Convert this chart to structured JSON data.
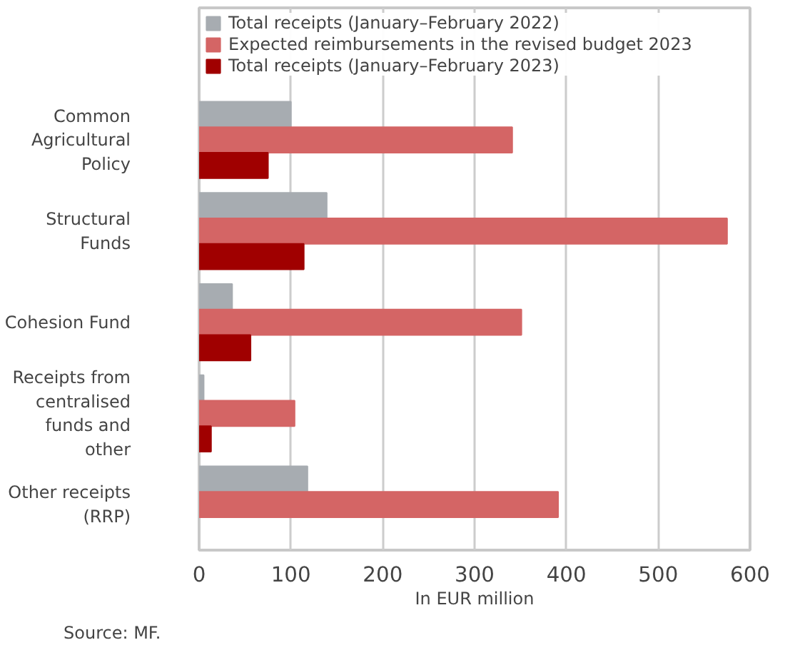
{
  "chart_data": {
    "type": "bar",
    "orientation": "horizontal",
    "xlabel": "In EUR million",
    "annotations": [
      "Source: MF."
    ],
    "categories": [
      "Common Agricultural Policy",
      "Structural Funds",
      "Cohesion Fund",
      "Receipts from centralised funds and other",
      "Other receipts (RRP)"
    ],
    "series": [
      {
        "name": "Total receipts (January–February 2022)",
        "color": "#a7acb1",
        "values": [
          100,
          139,
          36,
          5,
          118
        ]
      },
      {
        "name": "Expected reimbursements in the revised budget 2023",
        "color": "#d46565",
        "values": [
          341,
          575,
          351,
          104,
          391
        ]
      },
      {
        "name": "Total receipts (January–February 2023)",
        "color": "#a00000",
        "values": [
          75,
          114,
          56,
          13,
          null
        ]
      }
    ],
    "xlim": [
      0,
      600
    ],
    "xticks": [
      0,
      100,
      200,
      300,
      400,
      500,
      600
    ],
    "grid": "x",
    "legend": "top"
  }
}
